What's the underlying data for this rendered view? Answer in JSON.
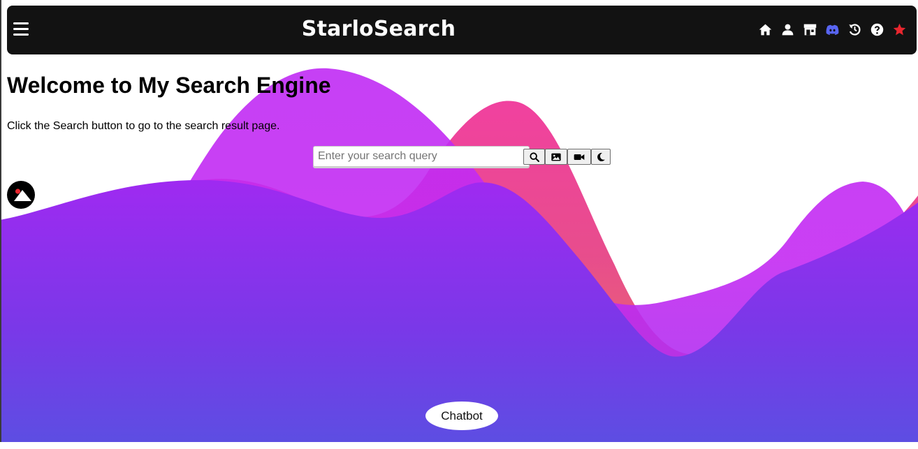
{
  "header": {
    "brand": "StarloSearch",
    "icons": [
      "menu-icon",
      "home-icon",
      "user-icon",
      "store-icon",
      "discord-icon",
      "history-icon",
      "help-icon",
      "star-icon"
    ],
    "accent_star": "#e8262e",
    "accent_discord": "#5865f2"
  },
  "main": {
    "title": "Welcome to My Search Engine",
    "description": "Click the Search button to go to the search result page."
  },
  "search": {
    "placeholder": "Enter your search query",
    "value": "",
    "buttons": [
      "search-icon",
      "image-icon",
      "video-icon",
      "moon-icon"
    ]
  },
  "chatbot": {
    "label": "Chatbot"
  },
  "colors": {
    "wave_magenta": "#c42af2",
    "wave_pink": "#e6477f",
    "wave_purple": "#9a2ef0",
    "wave_indigo": "#5f4ce3",
    "navbar_bg": "#121212"
  }
}
